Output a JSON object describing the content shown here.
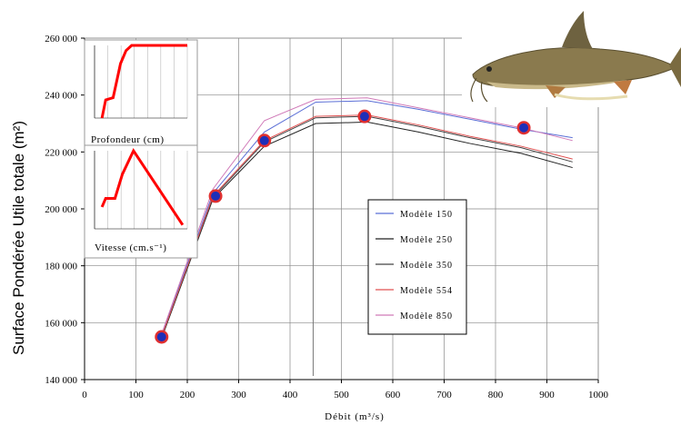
{
  "chart_data": {
    "type": "line",
    "title": "",
    "xlabel": "Débit (m³/s)",
    "ylabel": "Surface Pondérée Utile totale (m²)",
    "xlim": [
      0,
      1000
    ],
    "ylim": [
      140000,
      260000
    ],
    "x_ticks": [
      "0",
      "100",
      "200",
      "300",
      "400",
      "500",
      "600",
      "700",
      "800",
      "900",
      "1000"
    ],
    "y_ticks": [
      "140 000",
      "160 000",
      "180 000",
      "200 000",
      "220 000",
      "240 000",
      "260 000"
    ],
    "grid": true,
    "legend_position": "center-right",
    "series": [
      {
        "name": "Modèle 150",
        "color": "#5b6fd6",
        "x": [
          150,
          250,
          350,
          450,
          550,
          650,
          750,
          850,
          950
        ],
        "y": [
          155500,
          205500,
          227000,
          237500,
          238000,
          235000,
          231500,
          228000,
          225000
        ]
      },
      {
        "name": "Modèle 250",
        "color": "#222222",
        "x": [
          150,
          250,
          350,
          450,
          550,
          650,
          750,
          850,
          950
        ],
        "y": [
          154500,
          203500,
          222000,
          230000,
          230500,
          227000,
          223000,
          219500,
          214500
        ]
      },
      {
        "name": "Modèle 350",
        "color": "#444444",
        "x": [
          150,
          250,
          350,
          450,
          550,
          650,
          750,
          850,
          950
        ],
        "y": [
          155000,
          204000,
          223500,
          232000,
          232500,
          229000,
          225000,
          221500,
          216500
        ]
      },
      {
        "name": "Modèle 554",
        "color": "#e05050",
        "x": [
          150,
          250,
          350,
          450,
          550,
          650,
          750,
          850,
          950
        ],
        "y": [
          155000,
          204500,
          224000,
          232500,
          233000,
          229500,
          225500,
          222000,
          217500
        ]
      },
      {
        "name": "Modèle 850",
        "color": "#d07ab8",
        "x": [
          150,
          250,
          350,
          450,
          550,
          650,
          750,
          850,
          950
        ],
        "y": [
          156000,
          207000,
          231000,
          238500,
          239000,
          235500,
          232000,
          228500,
          224000
        ]
      }
    ],
    "markers": {
      "x": [
        150,
        255,
        350,
        545,
        855
      ],
      "y": [
        155000,
        204500,
        224000,
        232500,
        228500
      ],
      "fill": "#1e2fb8",
      "ring": "#e03030"
    },
    "annotation_line_x": 445,
    "insets": [
      {
        "caption": "Profondeur (cm)",
        "shape": [
          [
            0.08,
            0.0
          ],
          [
            0.12,
            0.25
          ],
          [
            0.2,
            0.28
          ],
          [
            0.28,
            0.75
          ],
          [
            0.34,
            0.93
          ],
          [
            0.4,
            1.0
          ],
          [
            1.0,
            1.0
          ]
        ]
      },
      {
        "caption": "Vitesse (cm.s⁻¹)",
        "shape": [
          [
            0.08,
            0.28
          ],
          [
            0.12,
            0.39
          ],
          [
            0.16,
            0.39
          ],
          [
            0.22,
            0.39
          ],
          [
            0.3,
            0.7
          ],
          [
            0.42,
            1.0
          ],
          [
            0.95,
            0.05
          ]
        ]
      }
    ]
  },
  "colors": {
    "inset_line": "#ff0000",
    "grid": "#888888"
  },
  "fish_image": "barbel-fish-photo"
}
